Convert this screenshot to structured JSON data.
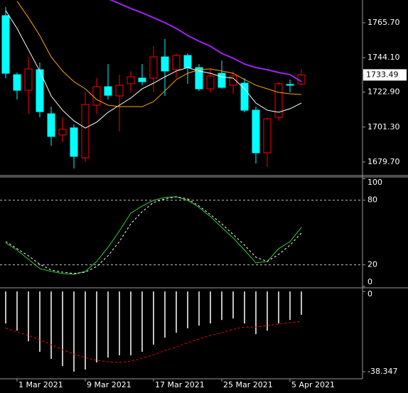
{
  "chart_data": [
    {
      "type": "candlestick",
      "categories": [
        null,
        "1 Mar 2021",
        null,
        null,
        null,
        null,
        null,
        "9 Mar 2021",
        null,
        null,
        null,
        null,
        null,
        "17 Mar 2021",
        null,
        null,
        null,
        null,
        null,
        "25 Mar 2021",
        null,
        null,
        null,
        null,
        null,
        "5 Apr 2021",
        null
      ],
      "open": [
        1770.1,
        1733.6,
        1724.0,
        1736.7,
        1709.5,
        1696.4,
        1700.8,
        1682.3,
        1714.8,
        1726.2,
        1720.5,
        1728.0,
        1731.5,
        1731.5,
        1744.6,
        1736.7,
        1745.5,
        1738.0,
        1724.9,
        1734.5,
        1727.1,
        1728.4,
        1711.7,
        1685.4,
        1707.3,
        1727.6,
        1727.9
      ],
      "high": [
        1775.4,
        1735.0,
        1744.6,
        1741.1,
        1713.9,
        1707.3,
        1702.9,
        1722.7,
        1731.5,
        1740.2,
        1733.7,
        1735.8,
        1740.2,
        1751.2,
        1755.6,
        1746.8,
        1746.8,
        1740.2,
        1736.7,
        1742.4,
        1735.8,
        1731.5,
        1713.9,
        1707.3,
        1729.3,
        1730.6,
        1737.2
      ],
      "low": [
        1731.5,
        1718.3,
        1709.5,
        1707.3,
        1689.8,
        1692.0,
        1675.7,
        1679.7,
        1709.5,
        1718.3,
        1698.6,
        1722.7,
        1727.1,
        1722.7,
        1720.5,
        1731.5,
        1728.0,
        1723.6,
        1722.7,
        1724.9,
        1721.8,
        1710.4,
        1678.8,
        1676.6,
        1705.1,
        1722.7,
        1727.1
      ],
      "close": [
        1734.5,
        1724.0,
        1737.2,
        1710.8,
        1695.5,
        1699.9,
        1683.2,
        1715.2,
        1726.2,
        1720.9,
        1727.1,
        1732.3,
        1729.3,
        1744.6,
        1735.9,
        1745.5,
        1738.0,
        1724.9,
        1732.8,
        1725.8,
        1732.8,
        1711.7,
        1685.4,
        1706.4,
        1728.0,
        1727.1,
        1733.49
      ],
      "up_color": "#ff0000",
      "down_color": "#00ffff",
      "lines": [
        {
          "color": "#ffffff",
          "width": 1,
          "values": [
            1773.2,
            1762.2,
            1749.0,
            1735.9,
            1720.5,
            1711.7,
            1705.1,
            1700.7,
            1704.3,
            1710.4,
            1714.8,
            1719.2,
            1724.9,
            1728.4,
            1732.3,
            1735.9,
            1738.0,
            1735.9,
            1734.5,
            1732.3,
            1731.5,
            1724.9,
            1716.1,
            1711.7,
            1710.4,
            1712.6,
            1716.1
          ]
        },
        {
          "color": "#ffa500",
          "width": 1,
          "values": [
            null,
            1779.0,
            1768.8,
            1757.8,
            1744.6,
            1735.9,
            1729.3,
            1724.9,
            1718.3,
            1714.8,
            1713.9,
            1713.9,
            1713.9,
            1717.0,
            1723.6,
            1730.6,
            1734.5,
            1736.7,
            1737.2,
            1735.9,
            1734.5,
            1730.6,
            1727.1,
            1724.9,
            1722.7,
            1721.8,
            1721.4
          ]
        },
        {
          "color": "#a020f0",
          "width": 2,
          "values": [
            null,
            null,
            null,
            null,
            null,
            null,
            null,
            null,
            null,
            1780.5,
            1777.5,
            1774.5,
            1771.8,
            1768.8,
            1765.7,
            1762.2,
            1757.8,
            1754.3,
            1751.2,
            1746.8,
            1743.8,
            1740.2,
            1738.0,
            1736.7,
            1735.0,
            1733.7,
            1729.3
          ]
        }
      ],
      "show_last_price": true,
      "ylim": [
        1671.8,
        1779.74
      ],
      "yticks": [
        {
          "value": 1765.7,
          "label": "1765.70"
        },
        {
          "value": 1744.1,
          "label": "1744.10"
        },
        {
          "value": 1722.9,
          "label": "1722.90"
        },
        {
          "value": 1701.3,
          "label": "1701.30"
        },
        {
          "value": 1679.7,
          "label": "1679.70"
        }
      ]
    },
    {
      "type": "line",
      "series": [
        {
          "color": "#32cd32",
          "dash": false,
          "values": [
            40.3,
            33.7,
            25.1,
            16.5,
            13.9,
            11.9,
            11.2,
            13.9,
            23.1,
            36.3,
            51.5,
            68.0,
            74.6,
            79.9,
            82.6,
            83.2,
            79.9,
            73.3,
            64.7,
            54.8,
            44.9,
            33.7,
            21.8,
            23.1,
            35.0,
            41.6,
            54.8
          ]
        },
        {
          "color": "#ffffff",
          "dash": true,
          "values": [
            41.6,
            35.0,
            28.4,
            20.5,
            15.2,
            13.2,
            11.9,
            13.2,
            18.5,
            28.4,
            41.6,
            58.1,
            69.4,
            77.9,
            81.2,
            83.2,
            81.2,
            74.6,
            66.7,
            58.1,
            48.2,
            38.3,
            27.1,
            23.1,
            29.7,
            38.3,
            49.5
          ]
        }
      ],
      "levels": [
        80,
        20
      ],
      "ylim": [
        -0.7,
        101.6
      ],
      "yticks": [
        100,
        80,
        20,
        0
      ]
    },
    {
      "type": "bar",
      "color": "#c0c0c0",
      "values": [
        -15.3,
        -18.7,
        -23.8,
        -28.8,
        -32.2,
        -35.6,
        -38.3,
        -37.3,
        -33.9,
        -31.6,
        -30.5,
        -30.5,
        -28.8,
        -25.4,
        -22.1,
        -19.7,
        -17.6,
        -16.3,
        -15.3,
        -13.6,
        -12.9,
        -15.3,
        -20.4,
        -18.7,
        -15.3,
        -13.6,
        -11.2
      ],
      "signal": {
        "color": "#ff0000",
        "dash": true,
        "values": [
          -17.6,
          -19.3,
          -21.0,
          -23.1,
          -25.4,
          -27.8,
          -29.9,
          -31.6,
          -32.9,
          -33.6,
          -33.9,
          -33.3,
          -31.9,
          -30.2,
          -28.2,
          -26.5,
          -24.4,
          -22.7,
          -21.0,
          -19.7,
          -18.0,
          -17.0,
          -17.0,
          -16.3,
          -15.6,
          -14.9,
          -14.3
        ]
      },
      "ylim": [
        -41.7,
        1.4
      ],
      "yticks": [
        0,
        -38.347
      ]
    }
  ]
}
